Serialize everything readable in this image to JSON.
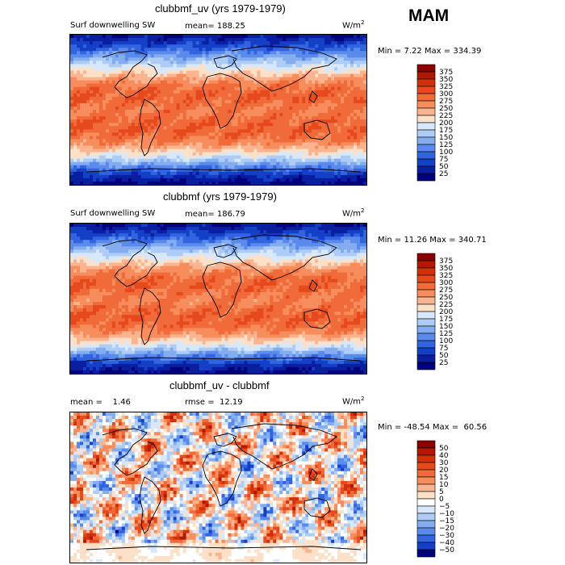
{
  "season": "MAM",
  "panels": [
    {
      "title": "clubbmf_uv (yrs 1979-1979)",
      "field_label": "Surf downwelling SW",
      "stat_label": "mean= 188.25",
      "units": "W/m",
      "units_exp": "2",
      "range_label": "Min =    7.22 Max = 334.39",
      "colorbar": {
        "ticks": [
          "375",
          "350",
          "325",
          "300",
          "275",
          "250",
          "225",
          "200",
          "175",
          "150",
          "125",
          "100",
          "75",
          "50",
          "25"
        ],
        "colors": [
          "#8c0000",
          "#b01800",
          "#d2300a",
          "#e64a1c",
          "#f06a3a",
          "#f78d5c",
          "#fbb490",
          "#fde0c8",
          "#d8e8fb",
          "#aecdf6",
          "#84adf0",
          "#5a8aeb",
          "#3264e0",
          "#1440c8",
          "#0a1ea0",
          "#00007d"
        ]
      },
      "map_data": {
        "kind": "latitudinal",
        "profile_values": [
          30,
          60,
          110,
          165,
          215,
          255,
          280,
          290,
          285,
          270,
          275,
          290,
          285,
          265,
          230,
          190,
          150,
          110,
          70,
          40
        ]
      }
    },
    {
      "title": "clubbmf (yrs 1979-1979)",
      "field_label": "Surf downwelling SW",
      "stat_label": "mean= 186.79",
      "units": "W/m",
      "units_exp": "2",
      "range_label": "Min =  11.26 Max = 340.71",
      "colorbar": {
        "ticks": [
          "375",
          "350",
          "325",
          "300",
          "275",
          "250",
          "225",
          "200",
          "175",
          "150",
          "125",
          "100",
          "75",
          "50",
          "25"
        ],
        "colors": [
          "#8c0000",
          "#b01800",
          "#d2300a",
          "#e64a1c",
          "#f06a3a",
          "#f78d5c",
          "#fbb490",
          "#fde0c8",
          "#d8e8fb",
          "#aecdf6",
          "#84adf0",
          "#5a8aeb",
          "#3264e0",
          "#1440c8",
          "#0a1ea0",
          "#00007d"
        ]
      },
      "map_data": {
        "kind": "latitudinal",
        "profile_values": [
          30,
          62,
          112,
          168,
          218,
          258,
          282,
          292,
          283,
          268,
          272,
          288,
          283,
          262,
          228,
          188,
          148,
          108,
          68,
          38
        ]
      }
    },
    {
      "title": "clubbmf_uv - clubbmf",
      "field_label": "mean =    1.46",
      "stat_label": "rmse =  12.19",
      "units": "W/m",
      "units_exp": "2",
      "range_label": "Min = -48.54 Max =  60.56",
      "colorbar": {
        "ticks": [
          "50",
          "40",
          "30",
          "20",
          "15",
          "10",
          "5",
          "0",
          "−5",
          "−10",
          "−15",
          "−20",
          "−30",
          "−40",
          "−50"
        ],
        "colors": [
          "#8c0000",
          "#b01800",
          "#d2300a",
          "#e64a1c",
          "#f06a3a",
          "#f78d5c",
          "#fbb490",
          "#fde0c8",
          "#ffffff",
          "#d8e8fb",
          "#aecdf6",
          "#84adf0",
          "#5a8aeb",
          "#3264e0",
          "#1440c8",
          "#00007d"
        ]
      },
      "map_data": {
        "kind": "difference",
        "range": [
          -48.54,
          60.56
        ]
      }
    }
  ]
}
